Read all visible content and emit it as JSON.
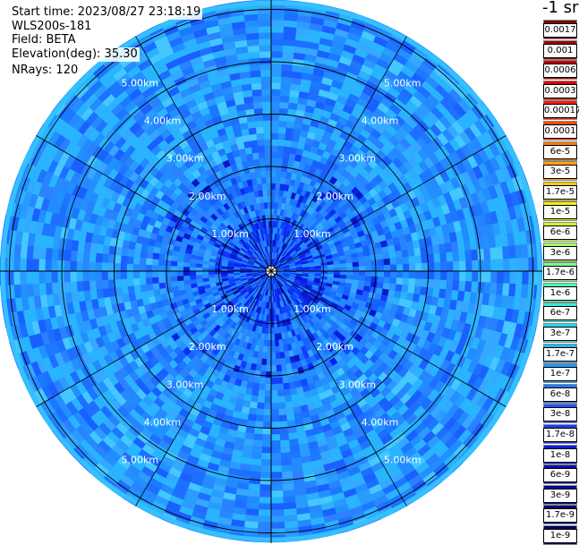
{
  "info": {
    "start_time": "Start time: 2023/08/27 23:18:19",
    "instrument": "WLS200s-181",
    "field": "Field: BETA",
    "elevation": "Elevation(deg): 35.30",
    "nrays": "NRays: 120"
  },
  "colorbar": {
    "unit": "-1 sr",
    "labels": [
      "0.0017",
      "0.001",
      "0.0006",
      "0.0003",
      "0.00017",
      "0.0001",
      "6e-5",
      "3e-5",
      "1.7e-5",
      "1e-5",
      "6e-6",
      "3e-6",
      "1.7e-6",
      "1e-6",
      "6e-7",
      "3e-7",
      "1.7e-7",
      "1e-7",
      "6e-8",
      "3e-8",
      "1.7e-8",
      "1e-8",
      "6e-9",
      "3e-9",
      "1.7e-9",
      "1e-9"
    ],
    "colors": [
      "#7f0000",
      "#a00000",
      "#c00000",
      "#e00000",
      "#ff1a00",
      "#ff4a00",
      "#ff7a00",
      "#ffa300",
      "#ffcc00",
      "#f0f000",
      "#c8ff30",
      "#a0ff60",
      "#78ff8c",
      "#50ffb4",
      "#30f0d8",
      "#20d8f0",
      "#20b8ff",
      "#2098ff",
      "#2078ff",
      "#1e58ff",
      "#1e38f0",
      "#1418d8",
      "#0a0ab8",
      "#06069a",
      "#03037c",
      "#000060"
    ]
  },
  "chart_data": {
    "type": "heatmap",
    "projection": "polar PPI scan",
    "rings_km": [
      1.0,
      2.0,
      3.0,
      4.0,
      5.0
    ],
    "ring_labels": [
      "1.00km",
      "2.00km",
      "3.00km",
      "4.00km",
      "5.00km"
    ],
    "max_range_km": 6.2,
    "n_rays": 120,
    "spokes_deg": [
      0,
      30,
      60,
      90,
      120,
      150,
      180,
      210,
      240,
      270,
      300,
      330
    ],
    "dominant_value_range": [
      "1e-8",
      "6e-8"
    ],
    "near_center_value_range": [
      "1e-9",
      "1e-8"
    ],
    "grid": true
  }
}
